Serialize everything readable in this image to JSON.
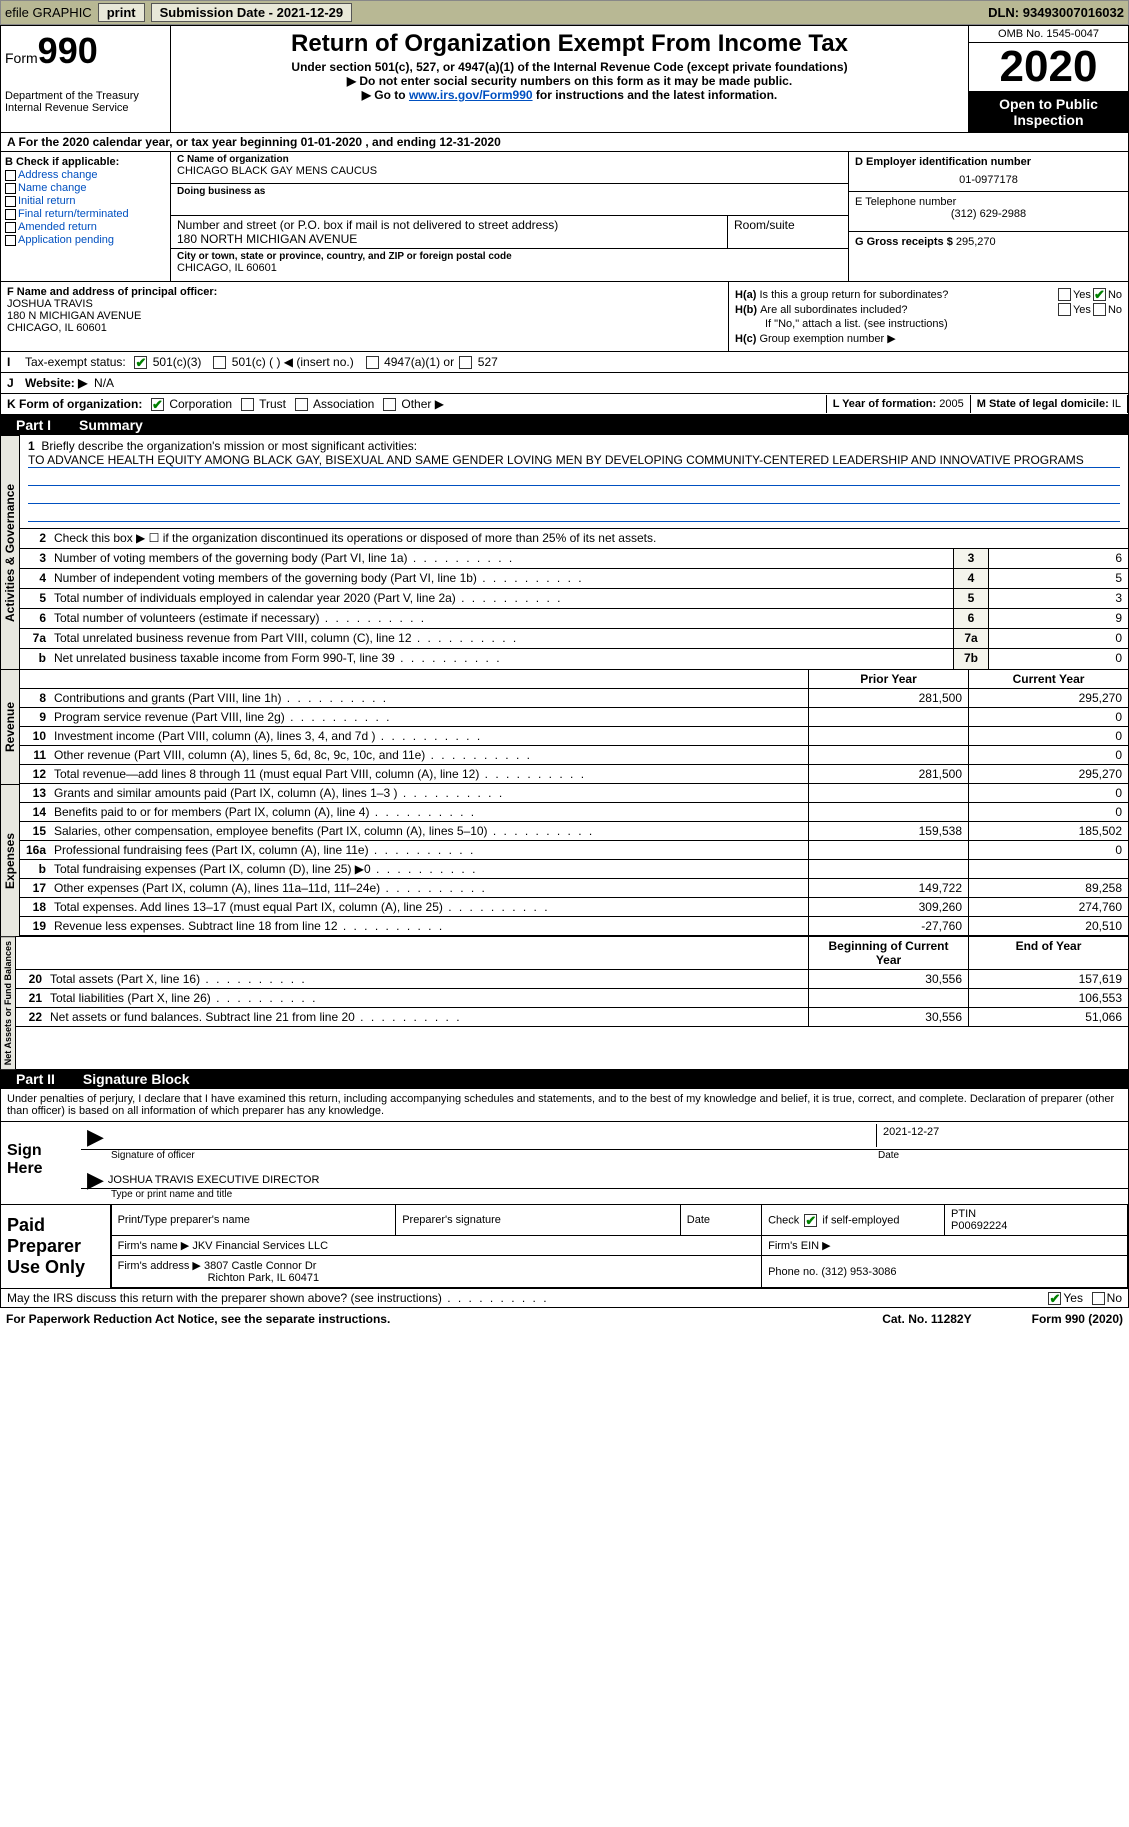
{
  "topbar": {
    "efile": "efile GRAPHIC",
    "print": "print",
    "submission_label": "Submission Date - ",
    "submission_date": "2021-12-29",
    "dln_label": "DLN: ",
    "dln": "93493007016032"
  },
  "header": {
    "form_word": "Form",
    "form_no": "990",
    "dept": "Department of the Treasury",
    "irs": "Internal Revenue Service",
    "title": "Return of Organization Exempt From Income Tax",
    "sub1": "Under section 501(c), 527, or 4947(a)(1) of the Internal Revenue Code (except private foundations)",
    "sub2": "▶ Do not enter social security numbers on this form as it may be made public.",
    "sub3_pre": "▶ Go to ",
    "sub3_link": "www.irs.gov/Form990",
    "sub3_post": " for instructions and the latest information.",
    "omb": "OMB No. 1545-0047",
    "year": "2020",
    "open": "Open to Public Inspection"
  },
  "row_a": "A For the 2020 calendar year, or tax year beginning 01-01-2020   , and ending 12-31-2020",
  "b": {
    "lbl": "B Check if applicable:",
    "opts": [
      "Address change",
      "Name change",
      "Initial return",
      "Final return/terminated",
      "Amended return",
      "Application pending"
    ]
  },
  "c": {
    "name_lbl": "C Name of organization",
    "name": "CHICAGO BLACK GAY MENS CAUCUS",
    "dba_lbl": "Doing business as",
    "dba": "",
    "street_lbl": "Number and street (or P.O. box if mail is not delivered to street address)",
    "street": "180 NORTH MICHIGAN AVENUE",
    "room_lbl": "Room/suite",
    "city_lbl": "City or town, state or province, country, and ZIP or foreign postal code",
    "city": "CHICAGO, IL  60601"
  },
  "d": {
    "lbl": "D Employer identification number",
    "val": "01-0977178"
  },
  "e": {
    "lbl": "E Telephone number",
    "val": "(312) 629-2988"
  },
  "g": {
    "lbl": "G Gross receipts $ ",
    "val": "295,270"
  },
  "f": {
    "lbl": "F Name and address of principal officer:",
    "name": "JOSHUA TRAVIS",
    "addr1": "180 N MICHIGAN AVENUE",
    "addr2": "CHICAGO, IL  60601"
  },
  "h": {
    "a_lbl": "Is this a group return for subordinates?",
    "a_pre": "H(a)",
    "b_pre": "H(b)",
    "b_lbl": "Are all subordinates included?",
    "note": "If \"No,\" attach a list. (see instructions)",
    "c_pre": "H(c)",
    "c_lbl": "Group exemption number ▶",
    "yes": "Yes",
    "no": "No"
  },
  "i": {
    "lbl": "Tax-exempt status:",
    "opt1": "501(c)(3)",
    "opt2": "501(c) (  ) ◀ (insert no.)",
    "opt3": "4947(a)(1) or",
    "opt4": "527"
  },
  "j": {
    "lbl": "Website: ▶",
    "val": "N/A"
  },
  "k": {
    "lbl": "K Form of organization:",
    "corp": "Corporation",
    "trust": "Trust",
    "assoc": "Association",
    "other": "Other ▶"
  },
  "l": {
    "lbl": "L Year of formation: ",
    "val": "2005"
  },
  "m": {
    "lbl": "M State of legal domicile: ",
    "val": "IL"
  },
  "part1": {
    "num": "Part I",
    "title": "Summary"
  },
  "mission": {
    "lbl": "Briefly describe the organization's mission or most significant activities:",
    "text": "TO ADVANCE HEALTH EQUITY AMONG BLACK GAY, BISEXUAL AND SAME GENDER LOVING MEN BY DEVELOPING COMMUNITY-CENTERED LEADERSHIP AND INNOVATIVE PROGRAMS"
  },
  "line2": "Check this box ▶ ☐  if the organization discontinued its operations or disposed of more than 25% of its net assets.",
  "gov_lines": [
    {
      "n": "3",
      "d": "Number of voting members of the governing body (Part VI, line 1a)",
      "box": "3",
      "v": "6"
    },
    {
      "n": "4",
      "d": "Number of independent voting members of the governing body (Part VI, line 1b)",
      "box": "4",
      "v": "5"
    },
    {
      "n": "5",
      "d": "Total number of individuals employed in calendar year 2020 (Part V, line 2a)",
      "box": "5",
      "v": "3"
    },
    {
      "n": "6",
      "d": "Total number of volunteers (estimate if necessary)",
      "box": "6",
      "v": "9"
    },
    {
      "n": "7a",
      "d": "Total unrelated business revenue from Part VIII, column (C), line 12",
      "box": "7a",
      "v": "0"
    },
    {
      "n": "b",
      "d": "Net unrelated business taxable income from Form 990-T, line 39",
      "box": "7b",
      "v": "0"
    }
  ],
  "col_hdr": {
    "prior": "Prior Year",
    "current": "Current Year"
  },
  "revenue": [
    {
      "n": "8",
      "d": "Contributions and grants (Part VIII, line 1h)",
      "c1": "281,500",
      "c2": "295,270"
    },
    {
      "n": "9",
      "d": "Program service revenue (Part VIII, line 2g)",
      "c1": "",
      "c2": "0"
    },
    {
      "n": "10",
      "d": "Investment income (Part VIII, column (A), lines 3, 4, and 7d )",
      "c1": "",
      "c2": "0"
    },
    {
      "n": "11",
      "d": "Other revenue (Part VIII, column (A), lines 5, 6d, 8c, 9c, 10c, and 11e)",
      "c1": "",
      "c2": "0"
    },
    {
      "n": "12",
      "d": "Total revenue—add lines 8 through 11 (must equal Part VIII, column (A), line 12)",
      "c1": "281,500",
      "c2": "295,270"
    }
  ],
  "expenses": [
    {
      "n": "13",
      "d": "Grants and similar amounts paid (Part IX, column (A), lines 1–3 )",
      "c1": "",
      "c2": "0"
    },
    {
      "n": "14",
      "d": "Benefits paid to or for members (Part IX, column (A), line 4)",
      "c1": "",
      "c2": "0"
    },
    {
      "n": "15",
      "d": "Salaries, other compensation, employee benefits (Part IX, column (A), lines 5–10)",
      "c1": "159,538",
      "c2": "185,502"
    },
    {
      "n": "16a",
      "d": "Professional fundraising fees (Part IX, column (A), line 11e)",
      "c1": "",
      "c2": "0"
    },
    {
      "n": "b",
      "d": "Total fundraising expenses (Part IX, column (D), line 25) ▶0",
      "c1": "shade",
      "c2": "shade"
    },
    {
      "n": "17",
      "d": "Other expenses (Part IX, column (A), lines 11a–11d, 11f–24e)",
      "c1": "149,722",
      "c2": "89,258"
    },
    {
      "n": "18",
      "d": "Total expenses. Add lines 13–17 (must equal Part IX, column (A), line 25)",
      "c1": "309,260",
      "c2": "274,760"
    },
    {
      "n": "19",
      "d": "Revenue less expenses. Subtract line 18 from line 12",
      "c1": "-27,760",
      "c2": "20,510"
    }
  ],
  "net_hdr": {
    "c1": "Beginning of Current Year",
    "c2": "End of Year"
  },
  "netassets": [
    {
      "n": "20",
      "d": "Total assets (Part X, line 16)",
      "c1": "30,556",
      "c2": "157,619"
    },
    {
      "n": "21",
      "d": "Total liabilities (Part X, line 26)",
      "c1": "",
      "c2": "106,553"
    },
    {
      "n": "22",
      "d": "Net assets or fund balances. Subtract line 21 from line 20",
      "c1": "30,556",
      "c2": "51,066"
    }
  ],
  "part2": {
    "num": "Part II",
    "title": "Signature Block"
  },
  "sig_text": "Under penalties of perjury, I declare that I have examined this return, including accompanying schedules and statements, and to the best of my knowledge and belief, it is true, correct, and complete. Declaration of preparer (other than officer) is based on all information of which preparer has any knowledge.",
  "sign": {
    "here": "Sign Here",
    "sig_officer": "Signature of officer",
    "date_lbl": "Date",
    "date": "2021-12-27",
    "name": "JOSHUA TRAVIS  EXECUTIVE DIRECTOR",
    "name_lbl": "Type or print name and title"
  },
  "paid": {
    "title": "Paid Preparer Use Only",
    "h1": "Print/Type preparer's name",
    "h2": "Preparer's signature",
    "h3": "Date",
    "h4_pre": "Check",
    "h4_post": "if self-employed",
    "h5": "PTIN",
    "ptin": "P00692224",
    "firm_lbl": "Firm's name  ▶ ",
    "firm": "JKV Financial Services LLC",
    "ein_lbl": "Firm's EIN ▶",
    "addr_lbl": "Firm's address ▶ ",
    "addr1": "3807 Castle Connor Dr",
    "addr2": "Richton Park, IL  60471",
    "phone_lbl": "Phone no. ",
    "phone": "(312) 953-3086"
  },
  "discuss": {
    "q": "May the IRS discuss this return with the preparer shown above? (see instructions)",
    "yes": "Yes",
    "no": "No"
  },
  "footer": {
    "pra": "For Paperwork Reduction Act Notice, see the separate instructions.",
    "cat": "Cat. No. 11282Y",
    "form": "Form 990 (2020)"
  },
  "vlabels": {
    "gov": "Activities & Governance",
    "rev": "Revenue",
    "exp": "Expenses",
    "net": "Net Assets or Fund Balances"
  }
}
